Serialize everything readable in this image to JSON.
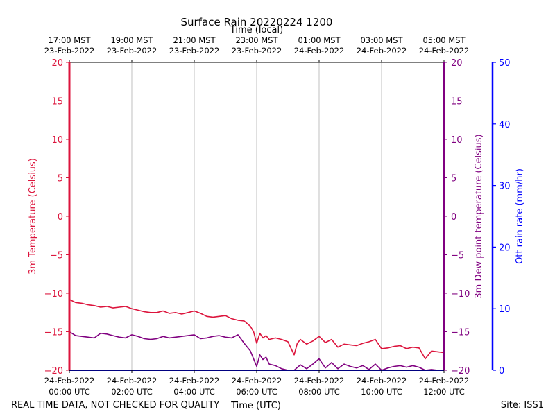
{
  "chart_data": {
    "type": "line",
    "title": "Surface Rain 20220224 1200",
    "top_axis_label": "Time (local)",
    "xlabel": "Time (UTC)",
    "footer_left": "REAL TIME DATA, NOT CHECKED FOR QUALITY",
    "footer_right": "Site: ISS1",
    "xlim": [
      0,
      12
    ],
    "x_ticks": [
      {
        "x": 0,
        "utc_date": "24-Feb-2022",
        "utc_time": "00:00 UTC",
        "local_time": "17:00 MST",
        "local_date": "23-Feb-2022"
      },
      {
        "x": 2,
        "utc_date": "24-Feb-2022",
        "utc_time": "02:00 UTC",
        "local_time": "19:00 MST",
        "local_date": "23-Feb-2022"
      },
      {
        "x": 4,
        "utc_date": "24-Feb-2022",
        "utc_time": "04:00 UTC",
        "local_time": "21:00 MST",
        "local_date": "23-Feb-2022"
      },
      {
        "x": 6,
        "utc_date": "24-Feb-2022",
        "utc_time": "06:00 UTC",
        "local_time": "23:00 MST",
        "local_date": "23-Feb-2022"
      },
      {
        "x": 8,
        "utc_date": "24-Feb-2022",
        "utc_time": "08:00 UTC",
        "local_time": "01:00 MST",
        "local_date": "24-Feb-2022"
      },
      {
        "x": 10,
        "utc_date": "24-Feb-2022",
        "utc_time": "10:00 UTC",
        "local_time": "03:00 MST",
        "local_date": "24-Feb-2022"
      },
      {
        "x": 12,
        "utc_date": "24-Feb-2022",
        "utc_time": "12:00 UTC",
        "local_time": "05:00 MST",
        "local_date": "24-Feb-2022"
      }
    ],
    "axes": {
      "temperature": {
        "label": "3m Temperature (Celsius)",
        "ylim": [
          -20,
          20
        ],
        "ticks": [
          "20",
          "15",
          "10",
          "5",
          "0",
          "−5",
          "−10",
          "−15",
          "−20"
        ],
        "color": "#dc143c"
      },
      "dewpoint": {
        "label": "3m Dew point temperature (Celsius)",
        "ylim": [
          -20,
          20
        ],
        "ticks": [
          "20",
          "15",
          "10",
          "5",
          "0",
          "−5",
          "−10",
          "−15",
          "−20"
        ],
        "color": "#800080"
      },
      "rain": {
        "label": "Ott rain rate (mm/hr)",
        "ylim": [
          0,
          50
        ],
        "ticks": [
          "50",
          "40",
          "30",
          "20",
          "10",
          "0"
        ],
        "color": "#0000ff"
      }
    },
    "series": [
      {
        "name": "3m Temperature",
        "axis": "temperature",
        "color": "#dc143c",
        "x": [
          0,
          0.2,
          0.4,
          0.6,
          0.8,
          1.0,
          1.2,
          1.4,
          1.6,
          1.8,
          2.0,
          2.2,
          2.4,
          2.6,
          2.8,
          3.0,
          3.2,
          3.4,
          3.6,
          3.8,
          4.0,
          4.2,
          4.4,
          4.6,
          4.8,
          5.0,
          5.2,
          5.4,
          5.6,
          5.8,
          5.9,
          6.0,
          6.1,
          6.2,
          6.3,
          6.4,
          6.6,
          6.8,
          7.0,
          7.2,
          7.3,
          7.4,
          7.6,
          7.8,
          8.0,
          8.2,
          8.4,
          8.6,
          8.8,
          9.0,
          9.2,
          9.4,
          9.6,
          9.8,
          10.0,
          10.2,
          10.4,
          10.6,
          10.8,
          11.0,
          11.2,
          11.4,
          11.6,
          11.8,
          12.0
        ],
        "values": [
          -10.8,
          -11.2,
          -11.3,
          -11.5,
          -11.6,
          -11.8,
          -11.7,
          -11.9,
          -11.8,
          -11.7,
          -12.0,
          -12.2,
          -12.4,
          -12.5,
          -12.5,
          -12.3,
          -12.6,
          -12.5,
          -12.7,
          -12.5,
          -12.3,
          -12.6,
          -13.0,
          -13.1,
          -13.0,
          -12.9,
          -13.3,
          -13.5,
          -13.6,
          -14.3,
          -15.0,
          -16.5,
          -15.2,
          -15.8,
          -15.5,
          -16.0,
          -15.8,
          -16.0,
          -16.3,
          -18.0,
          -16.5,
          -16.0,
          -16.6,
          -16.2,
          -15.6,
          -16.4,
          -16.0,
          -17.0,
          -16.6,
          -16.7,
          -16.8,
          -16.5,
          -16.3,
          -16.0,
          -17.2,
          -17.1,
          -16.9,
          -16.8,
          -17.2,
          -17.0,
          -17.1,
          -18.5,
          -17.5,
          -17.6,
          -17.7
        ]
      },
      {
        "name": "3m Dew point temperature",
        "axis": "dewpoint",
        "color": "#800080",
        "x": [
          0,
          0.2,
          0.4,
          0.6,
          0.8,
          1.0,
          1.2,
          1.4,
          1.6,
          1.8,
          2.0,
          2.2,
          2.4,
          2.6,
          2.8,
          3.0,
          3.2,
          3.4,
          3.6,
          3.8,
          4.0,
          4.2,
          4.4,
          4.6,
          4.8,
          5.0,
          5.2,
          5.4,
          5.6,
          5.8,
          6.0,
          6.1,
          6.2,
          6.3,
          6.4,
          6.6,
          6.8,
          7.0,
          7.2,
          7.4,
          7.6,
          7.8,
          8.0,
          8.2,
          8.4,
          8.6,
          8.8,
          9.0,
          9.2,
          9.4,
          9.6,
          9.8,
          10.0,
          10.2,
          10.4,
          10.6,
          10.8,
          11.0,
          11.2,
          11.4,
          11.6,
          11.8,
          12.0
        ],
        "values": [
          -15.0,
          -15.5,
          -15.6,
          -15.7,
          -15.8,
          -15.2,
          -15.3,
          -15.5,
          -15.7,
          -15.8,
          -15.4,
          -15.6,
          -15.9,
          -16.0,
          -15.9,
          -15.6,
          -15.8,
          -15.7,
          -15.6,
          -15.5,
          -15.4,
          -15.9,
          -15.8,
          -15.6,
          -15.5,
          -15.7,
          -15.8,
          -15.4,
          -16.5,
          -17.5,
          -19.5,
          -18.0,
          -18.6,
          -18.3,
          -19.2,
          -19.4,
          -19.8,
          -20.0,
          -20.0,
          -19.3,
          -19.8,
          -19.2,
          -18.5,
          -19.7,
          -19.0,
          -19.8,
          -19.2,
          -19.5,
          -19.7,
          -19.4,
          -19.9,
          -19.2,
          -20.0,
          -19.7,
          -19.5,
          -19.4,
          -19.6,
          -19.4,
          -19.6,
          -20.0,
          -19.9,
          -20.0,
          -20.0
        ]
      },
      {
        "name": "Ott rain rate",
        "axis": "rain",
        "color": "#0000ff",
        "x": [
          0,
          12
        ],
        "values": [
          0,
          0
        ]
      }
    ]
  }
}
